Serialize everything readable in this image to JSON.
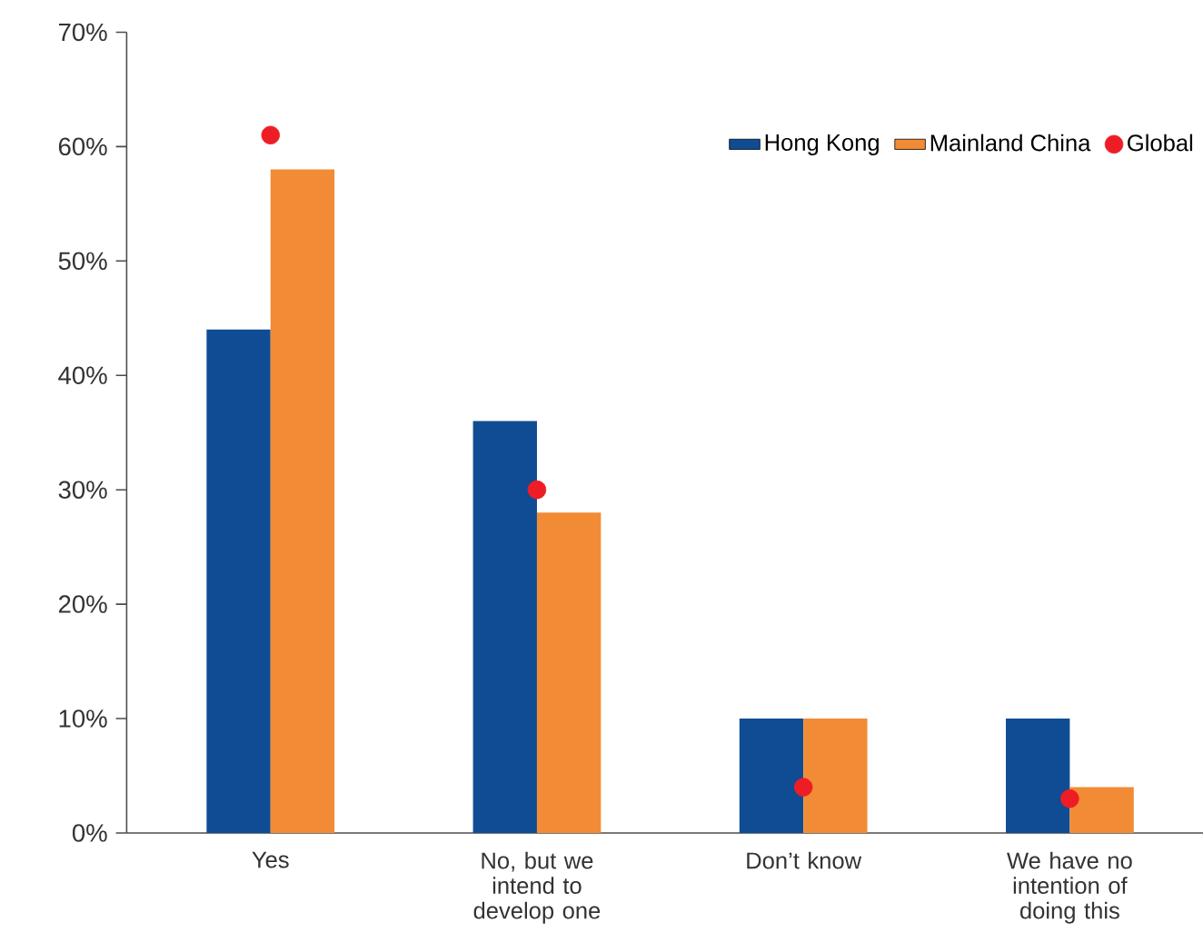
{
  "chart_data": {
    "type": "bar",
    "categories": [
      "Yes",
      "No, but we intend to develop one",
      "Don’t know",
      "We have no intention of doing this"
    ],
    "series": [
      {
        "name": "Hong Kong",
        "color": "#0f4c94",
        "values": [
          44,
          36,
          10,
          10
        ]
      },
      {
        "name": "Mainland China",
        "color": "#f28b35",
        "values": [
          58,
          28,
          10,
          4
        ]
      },
      {
        "name": "Global",
        "type": "scatter",
        "color": "#ee1d25",
        "x": [
          "Yes",
          "No, but we intend to develop one",
          "Don’t know",
          "We have no intention of doing this"
        ],
        "values": [
          61,
          30,
          4,
          3
        ]
      }
    ],
    "ylim": [
      0,
      70
    ],
    "yticks": [
      {
        "value": 0,
        "label": "0%"
      },
      {
        "value": 10,
        "label": "10%"
      },
      {
        "value": 20,
        "label": "20%"
      },
      {
        "value": 30,
        "label": "30%"
      },
      {
        "value": 40,
        "label": "40%"
      },
      {
        "value": 50,
        "label": "50%"
      },
      {
        "value": 60,
        "label": "60%"
      },
      {
        "value": 70,
        "label": "70%"
      }
    ],
    "grid": false,
    "legend": "top right"
  }
}
